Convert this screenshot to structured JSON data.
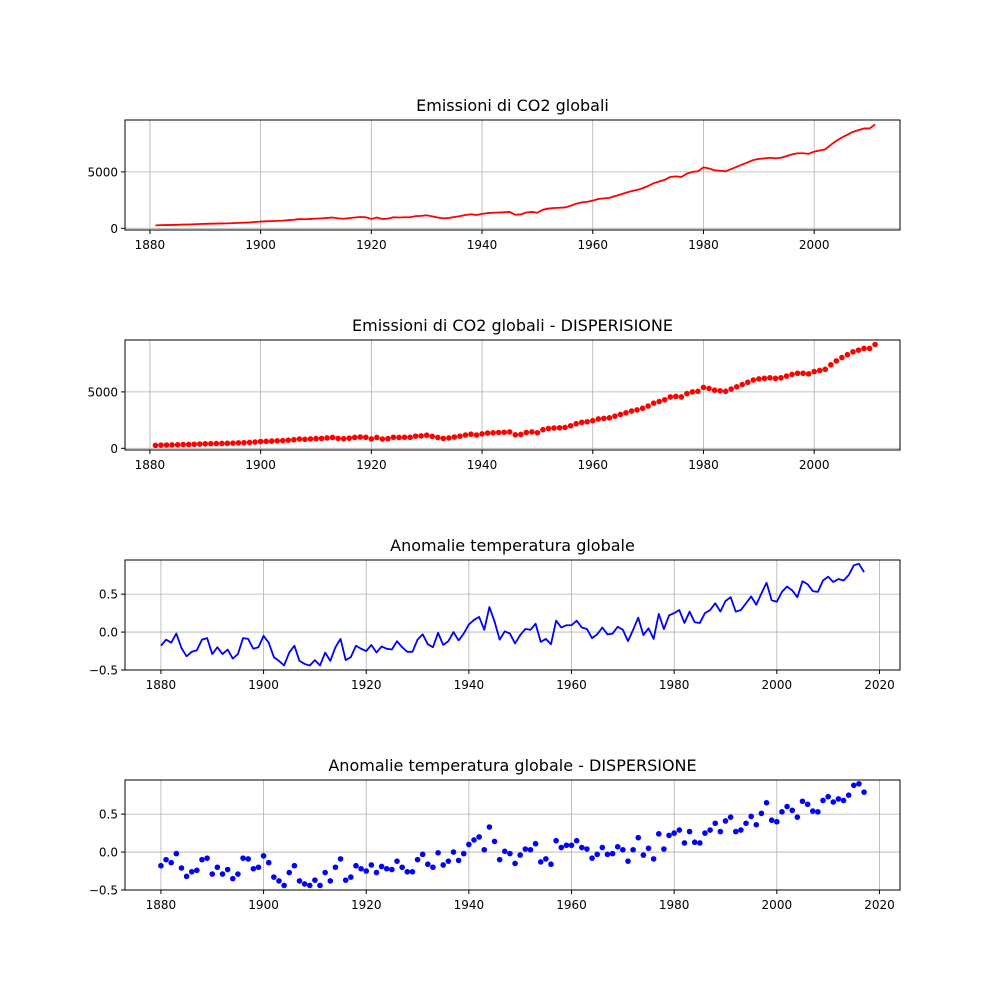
{
  "chart_data": [
    {
      "type": "line",
      "title": "Emissioni di CO2 globali",
      "xlim": [
        1875.5,
        2015.5
      ],
      "ylim": [
        -150,
        9600
      ],
      "xticks": [
        1880,
        1900,
        1920,
        1940,
        1960,
        1980,
        2000
      ],
      "yticks": [
        0,
        5000
      ],
      "xlabel": "",
      "ylabel": "",
      "grid": true,
      "color": "#ff0000",
      "x_start": 1881,
      "series": [
        {
          "values": [
            260,
            280,
            290,
            300,
            310,
            330,
            340,
            360,
            380,
            400,
            410,
            420,
            430,
            440,
            460,
            480,
            500,
            520,
            560,
            600,
            620,
            640,
            660,
            680,
            720,
            760,
            820,
            800,
            830,
            860,
            880,
            920,
            960,
            880,
            850,
            900,
            960,
            1000,
            980,
            830,
            960,
            820,
            860,
            980,
            960,
            980,
            980,
            1080,
            1100,
            1160,
            1060,
            960,
            880,
            920,
            1000,
            1080,
            1180,
            1250,
            1180,
            1280,
            1350,
            1380,
            1400,
            1420,
            1450,
            1200,
            1230,
            1400,
            1450,
            1380,
            1650,
            1750,
            1800,
            1820,
            1850,
            2000,
            2180,
            2300,
            2350,
            2450,
            2600,
            2650,
            2700,
            2850,
            3000,
            3150,
            3300,
            3400,
            3550,
            3750,
            4000,
            4150,
            4300,
            4550,
            4600,
            4550,
            4850,
            5000,
            5050,
            5400,
            5300,
            5150,
            5100,
            5050,
            5250,
            5450,
            5650,
            5850,
            6050,
            6150,
            6200,
            6250,
            6200,
            6250,
            6400,
            6550,
            6650,
            6650,
            6600,
            6800,
            6900,
            7000,
            7400,
            7750,
            8050,
            8300,
            8550,
            8700,
            8850,
            8850,
            9200
          ]
        }
      ]
    },
    {
      "type": "scatter",
      "title": "Emissioni di CO2 globali - DISPERISIONE",
      "xlim": [
        1875.5,
        2015.5
      ],
      "ylim": [
        -150,
        9600
      ],
      "xticks": [
        1880,
        1900,
        1920,
        1940,
        1960,
        1980,
        2000
      ],
      "yticks": [
        0,
        5000
      ],
      "xlabel": "",
      "ylabel": "",
      "grid": true,
      "color": "#ff0000",
      "x_start": 1881,
      "series": [
        {
          "values": [
            260,
            280,
            290,
            300,
            310,
            330,
            340,
            360,
            380,
            400,
            410,
            420,
            430,
            440,
            460,
            480,
            500,
            520,
            560,
            600,
            620,
            640,
            660,
            680,
            720,
            760,
            820,
            800,
            830,
            860,
            880,
            920,
            960,
            880,
            850,
            900,
            960,
            1000,
            980,
            830,
            960,
            820,
            860,
            980,
            960,
            980,
            980,
            1080,
            1100,
            1160,
            1060,
            960,
            880,
            920,
            1000,
            1080,
            1180,
            1250,
            1180,
            1280,
            1350,
            1380,
            1400,
            1420,
            1450,
            1200,
            1230,
            1400,
            1450,
            1380,
            1650,
            1750,
            1800,
            1820,
            1850,
            2000,
            2180,
            2300,
            2350,
            2450,
            2600,
            2650,
            2700,
            2850,
            3000,
            3150,
            3300,
            3400,
            3550,
            3750,
            4000,
            4150,
            4300,
            4550,
            4600,
            4550,
            4850,
            5000,
            5050,
            5400,
            5300,
            5150,
            5100,
            5050,
            5250,
            5450,
            5650,
            5850,
            6050,
            6150,
            6200,
            6250,
            6200,
            6250,
            6400,
            6550,
            6650,
            6650,
            6600,
            6800,
            6900,
            7000,
            7400,
            7750,
            8050,
            8300,
            8550,
            8700,
            8850,
            8850,
            9200
          ]
        }
      ]
    },
    {
      "type": "line",
      "title": "Anomalie temperatura globale",
      "xlim": [
        1873,
        2024
      ],
      "ylim": [
        -0.5,
        0.95
      ],
      "xticks": [
        1880,
        1900,
        1920,
        1940,
        1960,
        1980,
        2000,
        2020
      ],
      "yticks": [
        -0.5,
        0.0,
        0.5
      ],
      "ytick_labels": [
        "−0.5",
        "0.0",
        "0.5"
      ],
      "xlabel": "",
      "ylabel": "",
      "grid": true,
      "color": "#0000ff",
      "x_start": 1880,
      "series": [
        {
          "values": [
            -0.18,
            -0.1,
            -0.14,
            -0.02,
            -0.21,
            -0.32,
            -0.26,
            -0.24,
            -0.1,
            -0.08,
            -0.29,
            -0.2,
            -0.29,
            -0.23,
            -0.35,
            -0.29,
            -0.08,
            -0.09,
            -0.22,
            -0.2,
            -0.05,
            -0.14,
            -0.33,
            -0.38,
            -0.44,
            -0.27,
            -0.18,
            -0.38,
            -0.42,
            -0.44,
            -0.37,
            -0.44,
            -0.27,
            -0.38,
            -0.2,
            -0.09,
            -0.37,
            -0.33,
            -0.18,
            -0.22,
            -0.25,
            -0.17,
            -0.27,
            -0.19,
            -0.22,
            -0.23,
            -0.12,
            -0.2,
            -0.26,
            -0.26,
            -0.1,
            -0.03,
            -0.16,
            -0.2,
            -0.01,
            -0.17,
            -0.12,
            0.0,
            -0.11,
            -0.02,
            0.1,
            0.16,
            0.2,
            0.03,
            0.33,
            0.14,
            -0.1,
            0.01,
            -0.02,
            -0.15,
            -0.04,
            0.04,
            0.03,
            0.11,
            -0.13,
            -0.09,
            -0.16,
            0.15,
            0.06,
            0.09,
            0.09,
            0.15,
            0.06,
            0.04,
            -0.08,
            -0.03,
            0.06,
            -0.03,
            -0.02,
            0.07,
            0.03,
            -0.12,
            0.03,
            0.19,
            -0.04,
            0.05,
            -0.09,
            0.24,
            0.04,
            0.22,
            0.25,
            0.29,
            0.12,
            0.27,
            0.13,
            0.12,
            0.25,
            0.29,
            0.38,
            0.27,
            0.41,
            0.46,
            0.27,
            0.29,
            0.38,
            0.47,
            0.36,
            0.51,
            0.65,
            0.42,
            0.4,
            0.53,
            0.6,
            0.55,
            0.46,
            0.67,
            0.63,
            0.54,
            0.53,
            0.68,
            0.73,
            0.66,
            0.7,
            0.68,
            0.75,
            0.88,
            0.9,
            0.79
          ]
        }
      ]
    },
    {
      "type": "scatter",
      "title": "Anomalie temperatura globale - DISPERSIONE",
      "xlim": [
        1873,
        2024
      ],
      "ylim": [
        -0.5,
        0.95
      ],
      "xticks": [
        1880,
        1900,
        1920,
        1940,
        1960,
        1980,
        2000,
        2020
      ],
      "yticks": [
        -0.5,
        0.0,
        0.5
      ],
      "ytick_labels": [
        "−0.5",
        "0.0",
        "0.5"
      ],
      "xlabel": "",
      "ylabel": "",
      "grid": true,
      "color": "#0000ff",
      "x_start": 1880,
      "series": [
        {
          "values": [
            -0.18,
            -0.1,
            -0.14,
            -0.02,
            -0.21,
            -0.32,
            -0.26,
            -0.24,
            -0.1,
            -0.08,
            -0.29,
            -0.2,
            -0.29,
            -0.23,
            -0.35,
            -0.29,
            -0.08,
            -0.09,
            -0.22,
            -0.2,
            -0.05,
            -0.14,
            -0.33,
            -0.38,
            -0.44,
            -0.27,
            -0.18,
            -0.38,
            -0.42,
            -0.44,
            -0.37,
            -0.44,
            -0.27,
            -0.38,
            -0.2,
            -0.09,
            -0.37,
            -0.33,
            -0.18,
            -0.22,
            -0.25,
            -0.17,
            -0.27,
            -0.19,
            -0.22,
            -0.23,
            -0.12,
            -0.2,
            -0.26,
            -0.26,
            -0.1,
            -0.03,
            -0.16,
            -0.2,
            -0.01,
            -0.17,
            -0.12,
            0.0,
            -0.11,
            -0.02,
            0.1,
            0.16,
            0.2,
            0.03,
            0.33,
            0.14,
            -0.1,
            0.01,
            -0.02,
            -0.15,
            -0.04,
            0.04,
            0.03,
            0.11,
            -0.13,
            -0.09,
            -0.16,
            0.15,
            0.06,
            0.09,
            0.09,
            0.15,
            0.06,
            0.04,
            -0.08,
            -0.03,
            0.06,
            -0.03,
            -0.02,
            0.07,
            0.03,
            -0.12,
            0.03,
            0.19,
            -0.04,
            0.05,
            -0.09,
            0.24,
            0.04,
            0.22,
            0.25,
            0.29,
            0.12,
            0.27,
            0.13,
            0.12,
            0.25,
            0.29,
            0.38,
            0.27,
            0.41,
            0.46,
            0.27,
            0.29,
            0.38,
            0.47,
            0.36,
            0.51,
            0.65,
            0.42,
            0.4,
            0.53,
            0.6,
            0.55,
            0.46,
            0.67,
            0.63,
            0.54,
            0.53,
            0.68,
            0.73,
            0.66,
            0.7,
            0.68,
            0.75,
            0.88,
            0.9,
            0.79
          ]
        }
      ]
    }
  ]
}
